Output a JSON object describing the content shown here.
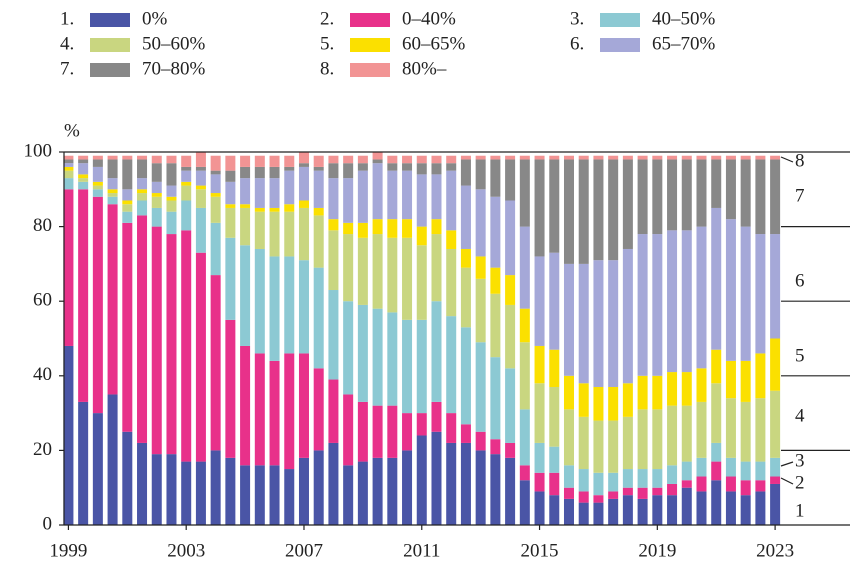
{
  "chart_data": {
    "type": "stacked_bar",
    "y_unit": "%",
    "x": [
      1999,
      1999.5,
      2000,
      2000.5,
      2001,
      2001.5,
      2002,
      2002.5,
      2003,
      2003.5,
      2004,
      2004.5,
      2005,
      2005.5,
      2006,
      2006.5,
      2007,
      2007.5,
      2008,
      2008.5,
      2009,
      2009.5,
      2010,
      2010.5,
      2011,
      2011.5,
      2012,
      2012.5,
      2013,
      2013.5,
      2014,
      2014.5,
      2015,
      2015.5,
      2016,
      2016.5,
      2017,
      2017.5,
      2018,
      2018.5,
      2019,
      2019.5,
      2020,
      2020.5,
      2021,
      2021.5,
      2022,
      2022.5,
      2023
    ],
    "xlim": [
      1998.85,
      2023.2
    ],
    "xticks": [
      1999,
      2003,
      2007,
      2011,
      2015,
      2019,
      2023
    ],
    "ylim": [
      0,
      100
    ],
    "yticks": [
      0,
      20,
      40,
      60,
      80,
      100
    ],
    "series": [
      {
        "number": "1.",
        "end_label": "1",
        "name": "0%",
        "color": "#4a55a6",
        "values": [
          48,
          33,
          30,
          35,
          25,
          22,
          19,
          19,
          17,
          17,
          20,
          18,
          16,
          16,
          16,
          15,
          18,
          20,
          22,
          16,
          17,
          18,
          18,
          20,
          24,
          25,
          22,
          22,
          20,
          19,
          18,
          12,
          9,
          8,
          7,
          6,
          6,
          7,
          8,
          7,
          8,
          8,
          10,
          9,
          12,
          9,
          8,
          9,
          11
        ]
      },
      {
        "number": "2.",
        "end_label": "2",
        "name": "0–40%",
        "color": "#e8318a",
        "values": [
          42,
          57,
          58,
          51,
          56,
          61,
          61,
          59,
          62,
          56,
          47,
          37,
          32,
          30,
          28,
          31,
          28,
          22,
          17,
          19,
          16,
          14,
          14,
          10,
          6,
          8,
          8,
          5,
          5,
          4,
          4,
          4,
          5,
          6,
          3,
          3,
          2,
          2,
          2,
          3,
          2,
          3,
          2,
          4,
          5,
          4,
          4,
          3,
          2
        ]
      },
      {
        "number": "3.",
        "end_label": "3",
        "name": "40–50%",
        "color": "#8cc9d3",
        "values": [
          3,
          2,
          2,
          2,
          3,
          4,
          5,
          6,
          8,
          12,
          14,
          22,
          27,
          28,
          28,
          26,
          25,
          27,
          24,
          25,
          26,
          26,
          25,
          25,
          25,
          27,
          26,
          26,
          24,
          22,
          20,
          15,
          8,
          7,
          6,
          6,
          6,
          5,
          5,
          5,
          5,
          5,
          5,
          5,
          5,
          5,
          5,
          5,
          5
        ]
      },
      {
        "number": "4.",
        "end_label": "4",
        "name": "50–60%",
        "color": "#c9d680",
        "values": [
          2,
          1,
          1,
          1,
          2,
          2,
          3,
          3,
          4,
          5,
          7,
          8,
          10,
          10,
          12,
          12,
          14,
          14,
          16,
          18,
          18,
          20,
          20,
          22,
          20,
          18,
          18,
          16,
          17,
          17,
          17,
          18,
          16,
          16,
          15,
          14,
          14,
          14,
          14,
          16,
          16,
          16,
          15,
          15,
          16,
          16,
          16,
          17,
          18
        ]
      },
      {
        "number": "5.",
        "end_label": "5",
        "name": "60–65%",
        "color": "#fbe000",
        "values": [
          1,
          1,
          1,
          1,
          1,
          1,
          1,
          1,
          1,
          1,
          1,
          1,
          1,
          1,
          1,
          2,
          2,
          2,
          3,
          3,
          4,
          4,
          5,
          5,
          5,
          4,
          5,
          5,
          6,
          7,
          8,
          9,
          10,
          10,
          9,
          9,
          9,
          9,
          9,
          9,
          9,
          9,
          9,
          9,
          9,
          10,
          11,
          12,
          14
        ]
      },
      {
        "number": "6.",
        "end_label": "6",
        "name": "65–70%",
        "color": "#a5a8d8",
        "values": [
          1,
          3,
          4,
          3,
          3,
          3,
          3,
          3,
          3,
          4,
          5,
          6,
          7,
          8,
          8,
          9,
          9,
          10,
          11,
          12,
          14,
          15,
          13,
          13,
          14,
          12,
          16,
          17,
          18,
          19,
          20,
          22,
          24,
          26,
          30,
          32,
          34,
          34,
          36,
          38,
          38,
          38,
          38,
          38,
          38,
          38,
          36,
          32,
          28
        ]
      },
      {
        "number": "7.",
        "end_label": "7",
        "name": "70–80%",
        "color": "#888888",
        "values": [
          1,
          1,
          2,
          5,
          8,
          5,
          5,
          6,
          1,
          1,
          1,
          3,
          3,
          3,
          3,
          1,
          1,
          1,
          4,
          4,
          2,
          1,
          2,
          2,
          3,
          3,
          2,
          7,
          8,
          10,
          11,
          18,
          26,
          25,
          28,
          28,
          27,
          27,
          24,
          20,
          20,
          19,
          19,
          18,
          13,
          16,
          18,
          20,
          20
        ]
      },
      {
        "number": "8.",
        "end_label": "8",
        "name": "80%–",
        "color": "#f29494",
        "values": [
          1,
          1,
          1,
          1,
          1,
          1,
          2,
          2,
          3,
          4,
          4,
          4,
          3,
          3,
          3,
          3,
          3,
          3,
          2,
          2,
          2,
          2,
          2,
          2,
          2,
          2,
          2,
          1,
          1,
          1,
          1,
          1,
          1,
          1,
          1,
          1,
          1,
          1,
          1,
          1,
          1,
          1,
          1,
          1,
          1,
          1,
          1,
          1,
          1
        ]
      }
    ]
  }
}
